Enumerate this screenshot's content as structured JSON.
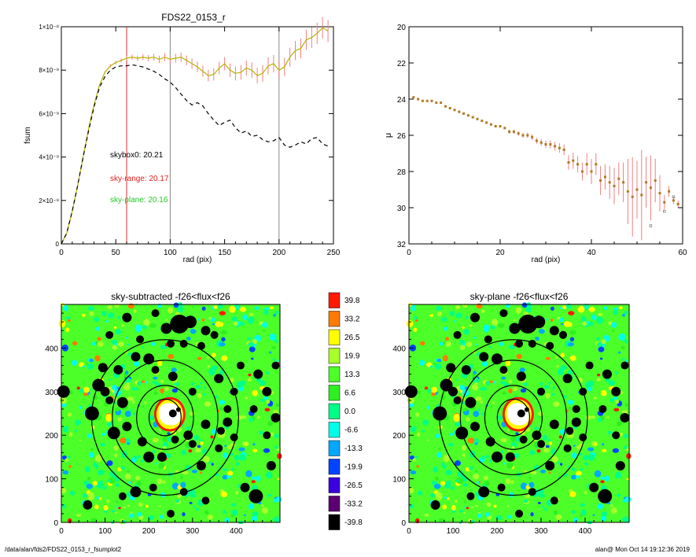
{
  "chart_data": [
    {
      "type": "line",
      "title": "FDS22_0153_r",
      "xlabel": "rad (pix)",
      "ylabel": "fsum",
      "xlim": [
        0,
        250
      ],
      "ylim": [
        0,
        1e-08
      ],
      "xticks": [
        "0",
        "50",
        "100",
        "150",
        "200",
        "250"
      ],
      "yticks": [
        "0",
        "2×10⁻⁹",
        "4×10⁻⁹",
        "6×10⁻⁹",
        "8×10⁻⁹",
        "1×10⁻⁸"
      ],
      "vlines": [
        {
          "x": 60,
          "color": "#e03030"
        },
        {
          "x": 100,
          "color": "#888888"
        },
        {
          "x": 200,
          "color": "#888888"
        }
      ],
      "annotations": [
        {
          "text": "skybox0: 20.21",
          "color": "#000000"
        },
        {
          "text": "sky-range: 20.17",
          "color": "#e02020"
        },
        {
          "text": "sky-plane: 20.16",
          "color": "#22cc22"
        }
      ],
      "series": [
        {
          "color": "#b4b400",
          "x": [
            0,
            5,
            10,
            15,
            20,
            25,
            30,
            35,
            40,
            45,
            50,
            55,
            60,
            65,
            70,
            75,
            80,
            85,
            90,
            95,
            100,
            105,
            110,
            115,
            120,
            125,
            130,
            135,
            140,
            145,
            150,
            155,
            160,
            165,
            170,
            175,
            180,
            185,
            190,
            195,
            200,
            205,
            210,
            215,
            220,
            225,
            230,
            235,
            240,
            245
          ],
          "y": [
            0,
            5e-10,
            1.5e-09,
            2.7e-09,
            4e-09,
            5.3e-09,
            6.4e-09,
            7.3e-09,
            7.9e-09,
            8.2e-09,
            8.35e-09,
            8.45e-09,
            8.55e-09,
            8.6e-09,
            8.55e-09,
            8.6e-09,
            8.55e-09,
            8.6e-09,
            8.5e-09,
            8.6e-09,
            8.5e-09,
            8.55e-09,
            8.6e-09,
            8.45e-09,
            8.3e-09,
            8.15e-09,
            7.95e-09,
            7.75e-09,
            7.8e-09,
            8.1e-09,
            8.3e-09,
            8e-09,
            7.85e-09,
            7.9e-09,
            8.1e-09,
            8e-09,
            7.75e-09,
            7.85e-09,
            8.2e-09,
            8.3e-09,
            8e-09,
            8.15e-09,
            8.6e-09,
            8.9e-09,
            9e-09,
            9.4e-09,
            9.5e-09,
            9.7e-09,
            9.95e-09,
            9.8e-09
          ]
        },
        {
          "color": "#000000",
          "x": [
            0,
            5,
            10,
            15,
            20,
            25,
            30,
            35,
            40,
            45,
            50,
            55,
            60,
            65,
            70,
            75,
            80,
            85,
            90,
            95,
            100,
            105,
            110,
            115,
            120,
            125,
            130,
            135,
            140,
            145,
            150,
            155,
            160,
            165,
            170,
            175,
            180,
            185,
            190,
            195,
            200,
            205,
            210,
            215,
            220,
            225,
            230,
            235,
            240,
            245
          ],
          "y": [
            0,
            5e-10,
            1.5e-09,
            2.7e-09,
            4e-09,
            5.2e-09,
            6.3e-09,
            7.2e-09,
            7.7e-09,
            8e-09,
            8.15e-09,
            8.2e-09,
            8.2e-09,
            8.25e-09,
            8.2e-09,
            8.15e-09,
            8.05e-09,
            7.95e-09,
            7.8e-09,
            7.6e-09,
            7.45e-09,
            7.2e-09,
            6.9e-09,
            6.6e-09,
            6.4e-09,
            6.5e-09,
            6.35e-09,
            6e-09,
            5.7e-09,
            5.45e-09,
            5.6e-09,
            5.7e-09,
            5.35e-09,
            5.1e-09,
            5.2e-09,
            4.95e-09,
            5e-09,
            4.8e-09,
            4.7e-09,
            4.75e-09,
            4.9e-09,
            4.55e-09,
            4.45e-09,
            4.55e-09,
            4.7e-09,
            4.6e-09,
            4.85e-09,
            4.9e-09,
            4.6e-09,
            4.5e-09
          ]
        }
      ]
    },
    {
      "type": "scatter",
      "xlabel": "rad (pix)",
      "ylabel": "μ",
      "xlim": [
        0,
        60
      ],
      "ylim": [
        32,
        20
      ],
      "xticks": [
        "0",
        "20",
        "40",
        "60"
      ],
      "yticks": [
        "20",
        "22",
        "24",
        "26",
        "28",
        "30",
        "32"
      ],
      "series": [
        {
          "color": "#b07a20",
          "x": [
            1,
            2,
            3,
            4,
            5,
            6,
            7,
            8,
            9,
            10,
            11,
            12,
            13,
            14,
            15,
            16,
            17,
            18,
            19,
            20,
            21,
            22,
            23,
            24,
            25,
            26,
            27,
            28,
            29,
            30,
            31,
            32,
            33,
            34,
            35,
            36,
            37,
            38,
            39,
            40,
            41,
            42,
            43,
            44,
            45,
            46,
            47,
            48,
            49,
            50,
            51,
            52,
            53,
            54,
            55,
            56,
            57,
            58,
            59
          ],
          "y": [
            23.9,
            24.0,
            24.1,
            24.1,
            24.1,
            24.2,
            24.2,
            24.4,
            24.5,
            24.6,
            24.7,
            24.8,
            24.9,
            25.0,
            25.1,
            25.2,
            25.3,
            25.4,
            25.5,
            25.5,
            25.6,
            25.8,
            25.8,
            25.9,
            26.0,
            26.0,
            26.1,
            26.3,
            26.4,
            26.5,
            26.5,
            26.6,
            26.7,
            26.8,
            27.5,
            27.4,
            27.6,
            28.0,
            27.6,
            28.0,
            27.6,
            28.5,
            28.3,
            28.6,
            28.8,
            28.4,
            28.6,
            29.1,
            29.4,
            29.0,
            29.3,
            28.6,
            28.9,
            28.5,
            29.2,
            29.7,
            29.1,
            29.6,
            29.8
          ],
          "err": [
            0.05,
            0.05,
            0.05,
            0.05,
            0.05,
            0.05,
            0.05,
            0.05,
            0.05,
            0.06,
            0.06,
            0.06,
            0.07,
            0.07,
            0.08,
            0.08,
            0.08,
            0.09,
            0.1,
            0.1,
            0.1,
            0.12,
            0.12,
            0.13,
            0.14,
            0.15,
            0.15,
            0.16,
            0.18,
            0.2,
            0.22,
            0.24,
            0.26,
            0.3,
            0.4,
            0.45,
            0.45,
            0.5,
            0.6,
            0.7,
            0.6,
            0.8,
            0.7,
            0.9,
            1.0,
            0.9,
            1.1,
            1.8,
            2.2,
            1.6,
            2.5,
            1.4,
            1.8,
            1.2,
            1.0,
            0.4,
            0.3,
            0.2,
            0.2
          ]
        },
        {
          "color": "#808080",
          "x": [
            53,
            56,
            58
          ],
          "y": [
            31.0,
            30.2,
            29.4
          ]
        }
      ]
    },
    {
      "type": "heatmap",
      "title": "sky-subtracted -f26<flux<f26",
      "xlim": [
        0,
        500
      ],
      "ylim": [
        0,
        500
      ],
      "xticks": [
        "0",
        "100",
        "200",
        "300",
        "400"
      ],
      "yticks": [
        "0",
        "100",
        "200",
        "300",
        "400"
      ]
    },
    {
      "type": "heatmap",
      "title": "sky-plane -f26<flux<f26",
      "xlim": [
        0,
        500
      ],
      "ylim": [
        0,
        500
      ],
      "xticks": [
        "0",
        "100",
        "200",
        "300",
        "400"
      ],
      "yticks": [
        "0",
        "100",
        "200",
        "300",
        "400"
      ]
    }
  ],
  "colorbar": {
    "labels": [
      "39.8",
      "33.2",
      "26.5",
      "19.9",
      "13.3",
      "6.6",
      "0.0",
      "-6.6",
      "-13.3",
      "-19.9",
      "-26.5",
      "-33.2",
      "-39.8"
    ],
    "colors": [
      "#ff1a00",
      "#ff7a00",
      "#ffff00",
      "#a8ff2a",
      "#4cff28",
      "#2ef020",
      "#00ff88",
      "#00ffe8",
      "#00a8ff",
      "#0044ff",
      "#3a00e0",
      "#5a0070",
      "#000000"
    ]
  },
  "footer": {
    "left": "/data/alan/fds2/FDS22_0153_r_fsumplot2",
    "right": "alan@  Mon Oct 14 19:12:36 2019"
  }
}
